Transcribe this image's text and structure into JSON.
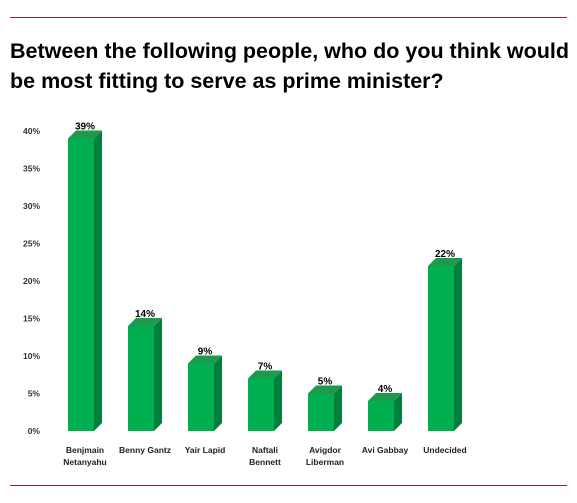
{
  "title": "Between the following people, who do you think would be most fitting to serve as prime minister?",
  "colors": {
    "bar_front": "#00b050",
    "bar_side": "#00803a",
    "bar_top": "#1d9a4c",
    "rule": "#8c2a2a",
    "text": "#000000"
  },
  "chart_data": {
    "type": "bar",
    "title": "Between the following people, who do you think would be most fitting to serve as prime minister?",
    "categories": [
      [
        "Benjmain",
        "Netanyahu"
      ],
      [
        "Benny Gantz"
      ],
      [
        "Yair Lapid"
      ],
      [
        "Naftali",
        "Bennett"
      ],
      [
        "Avigdor",
        "Liberman"
      ],
      [
        "Avi Gabbay"
      ],
      [
        "Undecided"
      ]
    ],
    "values": [
      39,
      14,
      9,
      7,
      5,
      4,
      22
    ],
    "data_labels": [
      "39%",
      "14%",
      "9%",
      "7%",
      "5%",
      "4%",
      "22%"
    ],
    "yticks": [
      0,
      5,
      10,
      15,
      20,
      25,
      30,
      35,
      40
    ],
    "ytick_labels": [
      "0%",
      "5%",
      "10%",
      "15%",
      "20%",
      "25%",
      "30%",
      "35%",
      "40%"
    ],
    "ylim": [
      0,
      40
    ],
    "bar_style": "3d",
    "grid": false,
    "legend": "none",
    "xlabel": "",
    "ylabel": ""
  }
}
